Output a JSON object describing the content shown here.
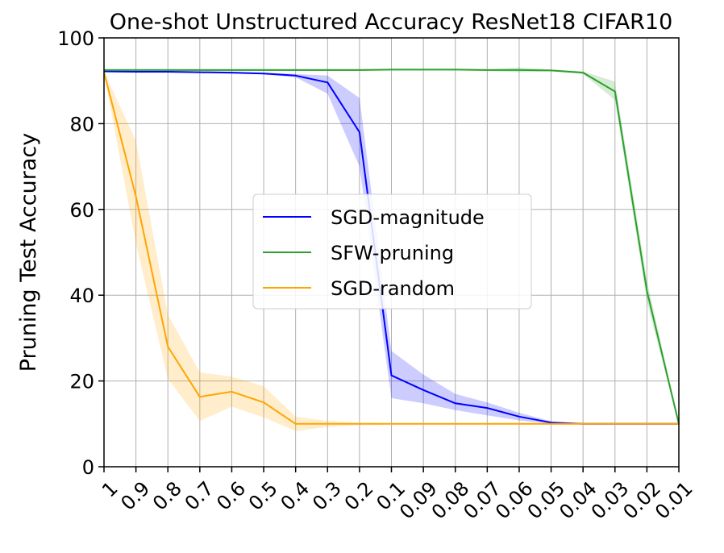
{
  "chart_data": {
    "type": "line",
    "title": "One-shot Unstructured Accuracy ResNet18 CIFAR10",
    "xlabel": "",
    "ylabel": "Pruning Test Accuracy",
    "categories": [
      "1",
      "0.9",
      "0.8",
      "0.7",
      "0.6",
      "0.5",
      "0.4",
      "0.3",
      "0.2",
      "0.1",
      "0.09",
      "0.08",
      "0.07",
      "0.06",
      "0.05",
      "0.04",
      "0.03",
      "0.02",
      "0.01"
    ],
    "ylim": [
      0,
      100
    ],
    "yticks": [
      0,
      20,
      40,
      60,
      80,
      100
    ],
    "grid": true,
    "legend_position": "center",
    "series": [
      {
        "name": "SGD-magnitude",
        "color": "#0000ff",
        "values": [
          92.2,
          92.1,
          92.1,
          92.0,
          91.9,
          91.7,
          91.2,
          89.6,
          78.0,
          21.3,
          17.9,
          14.8,
          13.7,
          11.7,
          10.3,
          10.0,
          10.0,
          10.0,
          10.0
        ],
        "lower": [
          92.0,
          91.9,
          91.9,
          91.8,
          91.7,
          91.5,
          90.8,
          87.0,
          70.0,
          16.0,
          14.8,
          13.2,
          12.0,
          10.8,
          10.0,
          10.0,
          10.0,
          10.0,
          10.0
        ],
        "upper": [
          92.4,
          92.3,
          92.3,
          92.2,
          92.1,
          91.9,
          91.6,
          91.2,
          86.0,
          27.0,
          21.5,
          17.0,
          15.0,
          12.6,
          10.6,
          10.0,
          10.0,
          10.0,
          10.0
        ]
      },
      {
        "name": "SFW-pruning",
        "color": "#2ca02c",
        "values": [
          92.5,
          92.5,
          92.5,
          92.5,
          92.5,
          92.5,
          92.5,
          92.5,
          92.5,
          92.6,
          92.6,
          92.6,
          92.5,
          92.5,
          92.4,
          91.9,
          87.5,
          41.0,
          10.0
        ],
        "lower": [
          92.3,
          92.3,
          92.3,
          92.3,
          92.3,
          92.3,
          92.3,
          92.3,
          92.3,
          92.4,
          92.4,
          92.4,
          92.3,
          92.0,
          92.2,
          91.6,
          85.5,
          38.5,
          9.7
        ],
        "upper": [
          92.7,
          92.7,
          92.7,
          92.7,
          92.7,
          92.7,
          92.7,
          92.7,
          92.7,
          92.8,
          92.8,
          92.8,
          92.7,
          93.1,
          92.6,
          92.2,
          89.8,
          43.5,
          10.3
        ]
      },
      {
        "name": "SGD-random",
        "color": "#ffa500",
        "values": [
          92.0,
          63.0,
          28.0,
          16.3,
          17.5,
          15.0,
          10.0,
          10.0,
          10.0,
          10.0,
          10.0,
          10.0,
          10.0,
          10.0,
          10.0,
          10.0,
          10.0,
          10.0,
          10.0
        ],
        "lower": [
          91.8,
          52.0,
          20.5,
          10.7,
          14.0,
          11.5,
          8.3,
          9.3,
          9.7,
          9.8,
          9.8,
          9.8,
          9.8,
          9.8,
          9.8,
          9.8,
          9.8,
          9.8,
          9.8
        ],
        "upper": [
          92.2,
          76.0,
          35.5,
          22.0,
          21.0,
          18.8,
          11.7,
          10.7,
          10.3,
          10.2,
          10.2,
          10.2,
          10.2,
          10.2,
          10.2,
          10.2,
          10.2,
          10.2,
          10.2
        ]
      }
    ]
  }
}
